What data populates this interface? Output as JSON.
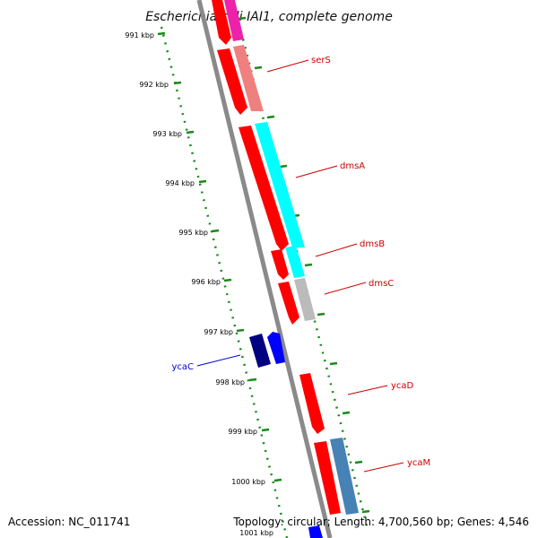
{
  "title": "Escherichia coli IAI1, complete genome",
  "footer": {
    "accession": "Accession: NC_011741",
    "topology": "Topology: circular; Length: 4,700,560 bp; Genes: 4,546"
  },
  "ticks": [
    {
      "label": "991 kbp"
    },
    {
      "label": "992 kbp"
    },
    {
      "label": "993 kbp"
    },
    {
      "label": "994 kbp"
    },
    {
      "label": "995 kbp"
    },
    {
      "label": "996 kbp"
    },
    {
      "label": "997 kbp"
    },
    {
      "label": "998 kbp"
    },
    {
      "label": "999 kbp"
    },
    {
      "label": "1000 kbp"
    },
    {
      "label": "1001 kbp"
    }
  ],
  "genes": [
    {
      "label": "serS",
      "color": "#cc0000"
    },
    {
      "label": "dmsA",
      "color": "#cc0000"
    },
    {
      "label": "dmsB",
      "color": "#cc0000"
    },
    {
      "label": "dmsC",
      "color": "#cc0000"
    },
    {
      "label": "ycaC",
      "color": "#0000cc"
    },
    {
      "label": "ycaD",
      "color": "#cc0000"
    },
    {
      "label": "ycaM",
      "color": "#cc0000"
    }
  ],
  "colors": {
    "backbone": "#8a8a8a",
    "tick_green": "#1a8a1a",
    "cds_red": "#ff0000",
    "cds_blue_dark": "#000080",
    "cds_blue": "#0000ff",
    "magenta": "#ee22aa",
    "salmon": "#f08080",
    "cyan": "#00ffff",
    "gray_feature": "#bbbbbb",
    "steelblue": "#4682b4"
  }
}
